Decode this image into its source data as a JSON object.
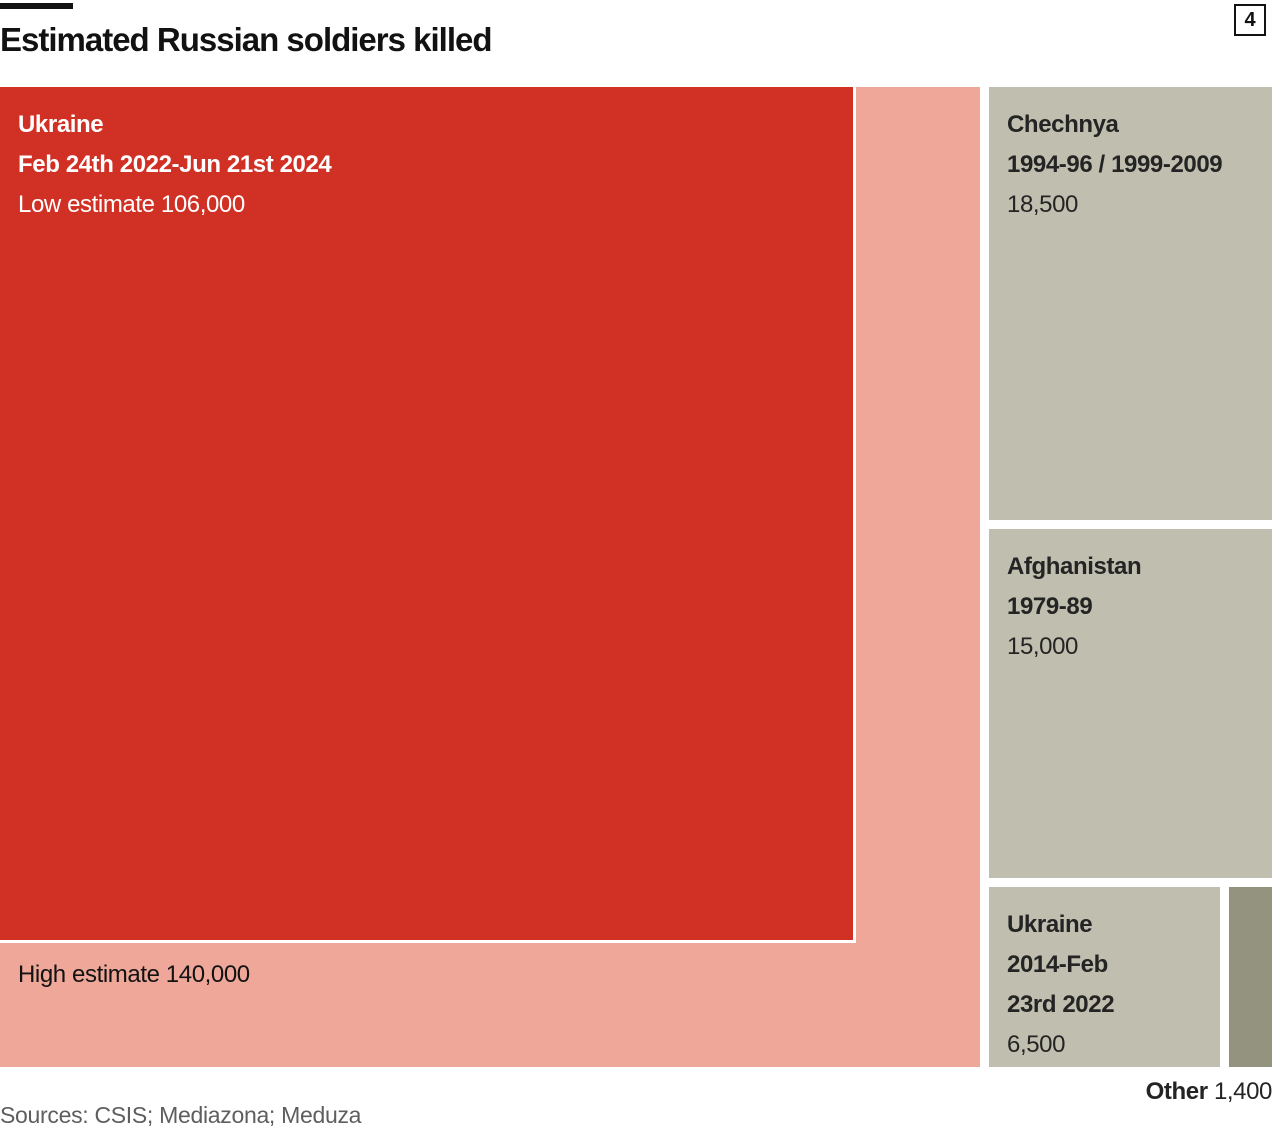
{
  "header": {
    "title": "Estimated Russian soldiers killed",
    "chart_number": "4"
  },
  "footer": {
    "source": "Sources: CSIS; Mediazona; Meduza"
  },
  "colors": {
    "ukraine_low": "#d13125",
    "ukraine_high": "#eea798",
    "other_conflicts": "#bfbeaf",
    "other_small": "#94937f"
  },
  "chart_data": {
    "type": "treemap",
    "title": "Estimated Russian soldiers killed",
    "source": "Sources: CSIS; Mediazona; Meduza",
    "items": [
      {
        "id": "ukraine_war",
        "name": "Ukraine",
        "period": "Feb 24th 2022-Jun 21st 2024",
        "low_label": "Low estimate 106,000",
        "low": 106000,
        "high_label": "High estimate 140,000",
        "high": 140000
      },
      {
        "id": "chechnya",
        "name": "Chechnya",
        "period": "1994-96 / 1999-2009",
        "value_label": "18,500",
        "value": 18500
      },
      {
        "id": "afghanistan",
        "name": "Afghanistan",
        "period": "1979-89",
        "value_label": "15,000",
        "value": 15000
      },
      {
        "id": "ukraine_2014",
        "name": "Ukraine",
        "period_line1": "2014-Feb",
        "period_line2": "23rd 2022",
        "value_label": "6,500",
        "value": 6500
      },
      {
        "id": "other",
        "name": "Other",
        "value_label": "1,400",
        "value": 1400
      }
    ]
  }
}
